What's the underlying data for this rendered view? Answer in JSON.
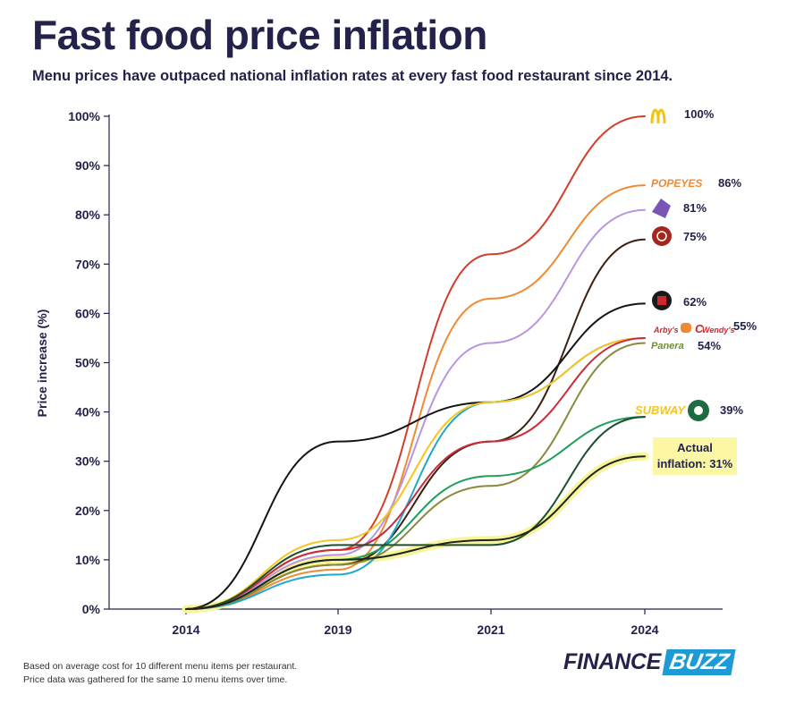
{
  "title": "Fast food price inflation",
  "subtitle": "Menu prices have outpaced national inflation rates at every fast food restaurant since 2014.",
  "footnote": [
    "Based on average cost for 10 different menu items per restaurant.",
    "Price data was gathered for the same 10 menu items over time."
  ],
  "brand": {
    "part1": "FINANCE",
    "part2": "BUZZ"
  },
  "inflation_label": [
    "Actual",
    "inflation: 31%"
  ],
  "chart_data": {
    "type": "line",
    "title": "Fast food price inflation",
    "ylabel": "Price increase (%)",
    "xlabel": "",
    "x": [
      "2014",
      "2019",
      "2021",
      "2024"
    ],
    "ylim": [
      0,
      100
    ],
    "y_ticks": [
      "0%",
      "10%",
      "20%",
      "30%",
      "40%",
      "50%",
      "60%",
      "70%",
      "80%",
      "90%",
      "100%"
    ],
    "series": [
      {
        "color": "#d33d2b",
        "values": [
          0,
          12,
          72,
          100
        ]
      },
      {
        "color": "#f08a32",
        "values": [
          0,
          8,
          63,
          86
        ]
      },
      {
        "color": "#b896de",
        "values": [
          0,
          11,
          54,
          81
        ]
      },
      {
        "color": "#3b2010",
        "values": [
          0,
          9,
          34,
          75
        ]
      },
      {
        "color": "#141414",
        "values": [
          0,
          34,
          42,
          62
        ]
      },
      {
        "color": "#1ea7cf",
        "values": [
          0,
          7,
          42,
          55
        ]
      },
      {
        "color": "#f5c520",
        "values": [
          0,
          14,
          42,
          55
        ]
      },
      {
        "color": "#c82e3a",
        "values": [
          0,
          12,
          34,
          55
        ]
      },
      {
        "color": "#8a8a3a",
        "values": [
          0,
          9,
          25,
          54
        ]
      },
      {
        "color": "#1f9e5c",
        "values": [
          0,
          10,
          27,
          39
        ]
      },
      {
        "color": "#1c4e30",
        "values": [
          0,
          13,
          13,
          39
        ]
      },
      {
        "color": "#222222",
        "highlight": "#f7f59a",
        "values": [
          0,
          10,
          14,
          31
        ]
      }
    ],
    "end_labels": [
      {
        "label": "100%",
        "value": 100,
        "icon": "mcdonalds-logo-icon"
      },
      {
        "label": "86%",
        "value": 86,
        "icon": "popeyes-logo-icon",
        "logo_text": "POPEYES"
      },
      {
        "label": "81%",
        "value": 81,
        "icon": "taco-bell-logo-icon"
      },
      {
        "label": "75%",
        "value": 75,
        "icon": "chipotle-logo-icon"
      },
      {
        "label": "62%",
        "value": 62,
        "icon": "jack-in-the-box-logo-icon"
      },
      {
        "label": "55%",
        "value": 55,
        "icon": "arbys-burger-king-chickfila-wendys-logos-icon",
        "logo_text": [
          "Arby's",
          "Wendy's"
        ]
      },
      {
        "label": "54%",
        "value": 54,
        "icon": "panera-logo-icon",
        "logo_text": "Panera"
      },
      {
        "label": "39%",
        "value": 39,
        "icon": "subway-starbucks-logos-icon",
        "logo_text": "SUBWAY"
      }
    ]
  }
}
